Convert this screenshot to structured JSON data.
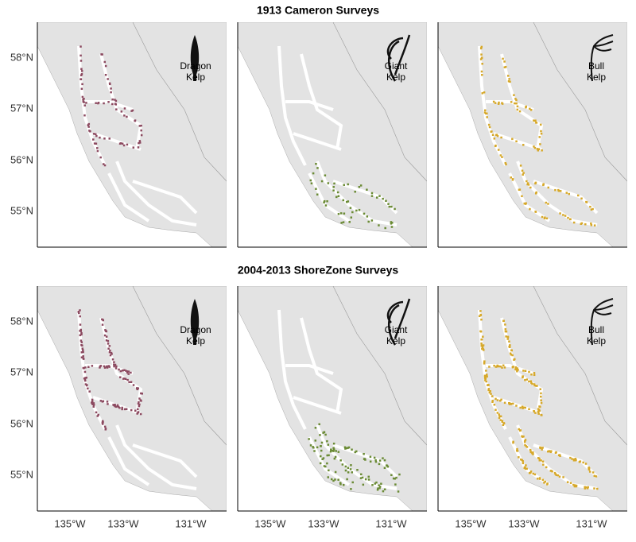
{
  "rows": [
    {
      "title": "1913 Cameron Surveys"
    },
    {
      "title": "2004-2013 ShoreZone Surveys"
    }
  ],
  "y_labels": [
    "58°N",
    "57°N",
    "56°N",
    "55°N"
  ],
  "x_labels": [
    "135°W",
    "133°W",
    "131°W"
  ],
  "kelp": [
    {
      "name": [
        "Dragon",
        "Kelp"
      ],
      "color": "#8c4a60"
    },
    {
      "name": [
        "Giant",
        "Kelp"
      ],
      "color": "#6b8b35"
    },
    {
      "name": [
        "Bull",
        "Kelp"
      ],
      "color": "#d6a82a"
    }
  ]
}
